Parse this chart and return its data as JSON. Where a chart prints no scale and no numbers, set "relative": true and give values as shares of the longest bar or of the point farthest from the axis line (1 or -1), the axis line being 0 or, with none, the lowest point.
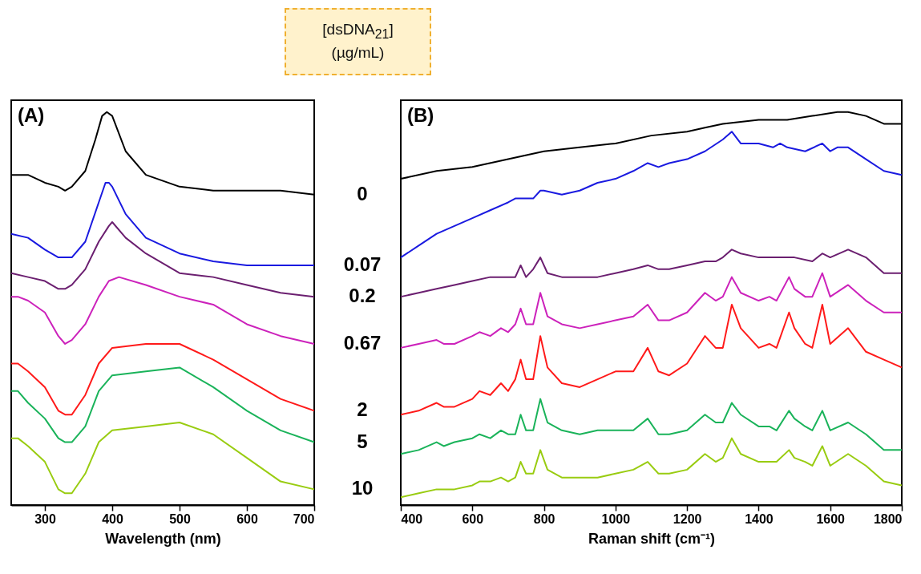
{
  "chart_data": [
    {
      "type": "line",
      "xlabel": "Wavelength (nm)",
      "legend_title": "[dsDNA$_{21}$] (µg/mL)",
      "annotations": [
        "(A)"
      ],
      "relative": true,
      "tick_labels": "x",
      "xlim": [
        250,
        700
      ],
      "xticks": [
        300,
        400,
        500,
        600,
        700
      ],
      "series": [
        {
          "name": "0",
          "color": "#000000",
          "x": [
            250,
            275,
            300,
            320,
            330,
            340,
            360,
            375,
            385,
            392,
            400,
            420,
            450,
            500,
            550,
            600,
            650,
            700
          ],
          "values": [
            0.84,
            0.84,
            0.82,
            0.81,
            0.8,
            0.81,
            0.85,
            0.93,
            0.99,
            1.0,
            0.99,
            0.9,
            0.84,
            0.81,
            0.8,
            0.8,
            0.8,
            0.79
          ]
        },
        {
          "name": "0.07",
          "color": "#1a1ae0",
          "x": [
            250,
            275,
            300,
            320,
            330,
            340,
            360,
            380,
            390,
            395,
            400,
            420,
            450,
            500,
            550,
            600,
            650,
            700
          ],
          "values": [
            0.69,
            0.68,
            0.65,
            0.63,
            0.63,
            0.63,
            0.67,
            0.77,
            0.82,
            0.82,
            0.81,
            0.74,
            0.68,
            0.64,
            0.62,
            0.61,
            0.61,
            0.61
          ]
        },
        {
          "name": "0.2",
          "color": "#6b1f70",
          "x": [
            250,
            275,
            300,
            320,
            330,
            340,
            360,
            380,
            395,
            400,
            420,
            450,
            500,
            550,
            600,
            650,
            700
          ],
          "values": [
            0.59,
            0.58,
            0.57,
            0.55,
            0.55,
            0.56,
            0.6,
            0.67,
            0.71,
            0.72,
            0.68,
            0.64,
            0.59,
            0.58,
            0.56,
            0.54,
            0.53
          ]
        },
        {
          "name": "0.67",
          "color": "#cc22bb",
          "x": [
            250,
            260,
            275,
            300,
            320,
            330,
            340,
            360,
            380,
            395,
            410,
            450,
            500,
            550,
            600,
            650,
            700
          ],
          "values": [
            0.53,
            0.53,
            0.52,
            0.49,
            0.43,
            0.41,
            0.42,
            0.46,
            0.53,
            0.57,
            0.58,
            0.56,
            0.53,
            0.51,
            0.46,
            0.43,
            0.41
          ]
        },
        {
          "name": "2",
          "color": "#ff1a1a",
          "x": [
            250,
            260,
            275,
            300,
            320,
            330,
            340,
            360,
            380,
            400,
            450,
            500,
            550,
            600,
            650,
            700
          ],
          "values": [
            0.36,
            0.36,
            0.34,
            0.3,
            0.24,
            0.23,
            0.23,
            0.28,
            0.36,
            0.4,
            0.41,
            0.41,
            0.37,
            0.32,
            0.27,
            0.24
          ]
        },
        {
          "name": "5",
          "color": "#1ab35a",
          "x": [
            250,
            260,
            275,
            300,
            320,
            330,
            340,
            360,
            380,
            400,
            450,
            500,
            550,
            600,
            650,
            700
          ],
          "values": [
            0.29,
            0.29,
            0.26,
            0.22,
            0.17,
            0.16,
            0.16,
            0.2,
            0.29,
            0.33,
            0.34,
            0.35,
            0.3,
            0.24,
            0.19,
            0.16
          ]
        },
        {
          "name": "10",
          "color": "#99cc11",
          "x": [
            250,
            260,
            275,
            300,
            320,
            330,
            340,
            360,
            380,
            400,
            450,
            500,
            550,
            600,
            650,
            700
          ],
          "values": [
            0.17,
            0.17,
            0.15,
            0.11,
            0.04,
            0.03,
            0.03,
            0.08,
            0.16,
            0.19,
            0.2,
            0.21,
            0.18,
            0.12,
            0.06,
            0.04
          ]
        }
      ]
    },
    {
      "type": "line",
      "xlabel": "Raman shift (cm⁻¹)",
      "annotations": [
        "(B)"
      ],
      "relative": true,
      "tick_labels": "x",
      "xlim": [
        400,
        1800
      ],
      "xticks": [
        400,
        600,
        800,
        1000,
        1200,
        1400,
        1600,
        1800
      ],
      "series": [
        {
          "color": "#000000",
          "x": [
            400,
            500,
            600,
            700,
            800,
            900,
            1000,
            1100,
            1200,
            1250,
            1300,
            1400,
            1450,
            1480,
            1550,
            1620,
            1650,
            1700,
            1750,
            1800
          ],
          "values": [
            0.83,
            0.85,
            0.86,
            0.88,
            0.9,
            0.91,
            0.92,
            0.94,
            0.95,
            0.96,
            0.97,
            0.98,
            0.98,
            0.98,
            0.99,
            1.0,
            1.0,
            0.99,
            0.97,
            0.97
          ]
        },
        {
          "color": "#1a1ae0",
          "x": [
            400,
            450,
            500,
            550,
            600,
            650,
            700,
            720,
            735,
            750,
            770,
            790,
            800,
            850,
            900,
            950,
            1000,
            1050,
            1090,
            1120,
            1150,
            1200,
            1250,
            1300,
            1325,
            1350,
            1400,
            1440,
            1460,
            1480,
            1530,
            1578,
            1600,
            1620,
            1650,
            1700,
            1750,
            1800
          ],
          "values": [
            0.63,
            0.66,
            0.69,
            0.71,
            0.73,
            0.75,
            0.77,
            0.78,
            0.78,
            0.78,
            0.78,
            0.8,
            0.8,
            0.79,
            0.8,
            0.82,
            0.83,
            0.85,
            0.87,
            0.86,
            0.87,
            0.88,
            0.9,
            0.93,
            0.95,
            0.92,
            0.92,
            0.91,
            0.92,
            0.91,
            0.9,
            0.92,
            0.9,
            0.91,
            0.91,
            0.88,
            0.85,
            0.84
          ]
        },
        {
          "color": "#6b1f70",
          "x": [
            400,
            450,
            500,
            550,
            600,
            650,
            700,
            720,
            735,
            750,
            770,
            790,
            810,
            850,
            900,
            950,
            1000,
            1050,
            1090,
            1120,
            1150,
            1200,
            1250,
            1280,
            1300,
            1325,
            1350,
            1400,
            1450,
            1480,
            1500,
            1550,
            1578,
            1600,
            1650,
            1700,
            1750,
            1800
          ],
          "values": [
            0.53,
            0.54,
            0.55,
            0.56,
            0.57,
            0.58,
            0.58,
            0.58,
            0.61,
            0.58,
            0.6,
            0.63,
            0.59,
            0.58,
            0.58,
            0.58,
            0.59,
            0.6,
            0.61,
            0.6,
            0.6,
            0.61,
            0.62,
            0.62,
            0.63,
            0.65,
            0.64,
            0.63,
            0.63,
            0.63,
            0.63,
            0.62,
            0.64,
            0.63,
            0.65,
            0.63,
            0.59,
            0.59
          ]
        },
        {
          "color": "#cc22bb",
          "x": [
            400,
            450,
            500,
            520,
            550,
            600,
            620,
            650,
            680,
            700,
            720,
            735,
            750,
            770,
            790,
            810,
            850,
            900,
            950,
            1000,
            1050,
            1090,
            1120,
            1150,
            1200,
            1250,
            1280,
            1300,
            1325,
            1350,
            1400,
            1430,
            1450,
            1485,
            1500,
            1530,
            1550,
            1578,
            1600,
            1650,
            1700,
            1750,
            1800
          ],
          "values": [
            0.4,
            0.41,
            0.42,
            0.41,
            0.41,
            0.43,
            0.44,
            0.43,
            0.45,
            0.44,
            0.46,
            0.5,
            0.46,
            0.46,
            0.54,
            0.48,
            0.46,
            0.45,
            0.46,
            0.47,
            0.48,
            0.51,
            0.47,
            0.47,
            0.49,
            0.54,
            0.52,
            0.53,
            0.58,
            0.54,
            0.52,
            0.53,
            0.52,
            0.58,
            0.55,
            0.53,
            0.53,
            0.59,
            0.53,
            0.56,
            0.52,
            0.49,
            0.49
          ]
        },
        {
          "color": "#ff1a1a",
          "x": [
            400,
            450,
            500,
            520,
            550,
            600,
            620,
            650,
            680,
            700,
            720,
            735,
            750,
            770,
            790,
            810,
            850,
            900,
            950,
            1000,
            1050,
            1090,
            1120,
            1150,
            1200,
            1250,
            1280,
            1300,
            1325,
            1350,
            1400,
            1430,
            1450,
            1485,
            1500,
            1530,
            1550,
            1578,
            1600,
            1650,
            1700,
            1750,
            1800
          ],
          "values": [
            0.23,
            0.24,
            0.26,
            0.25,
            0.25,
            0.27,
            0.29,
            0.28,
            0.31,
            0.29,
            0.32,
            0.37,
            0.32,
            0.32,
            0.43,
            0.35,
            0.31,
            0.3,
            0.32,
            0.34,
            0.34,
            0.4,
            0.34,
            0.33,
            0.36,
            0.43,
            0.4,
            0.4,
            0.51,
            0.45,
            0.4,
            0.41,
            0.4,
            0.49,
            0.45,
            0.41,
            0.4,
            0.51,
            0.41,
            0.45,
            0.39,
            0.37,
            0.35
          ]
        },
        {
          "color": "#1ab35a",
          "x": [
            400,
            450,
            500,
            520,
            550,
            600,
            620,
            650,
            680,
            700,
            720,
            735,
            750,
            770,
            790,
            810,
            850,
            900,
            950,
            1000,
            1050,
            1090,
            1120,
            1150,
            1200,
            1250,
            1280,
            1300,
            1325,
            1350,
            1400,
            1430,
            1450,
            1485,
            1500,
            1530,
            1550,
            1578,
            1600,
            1650,
            1700,
            1750,
            1800
          ],
          "values": [
            0.13,
            0.14,
            0.16,
            0.15,
            0.16,
            0.17,
            0.18,
            0.17,
            0.19,
            0.18,
            0.18,
            0.23,
            0.19,
            0.19,
            0.27,
            0.21,
            0.19,
            0.18,
            0.19,
            0.19,
            0.19,
            0.22,
            0.18,
            0.18,
            0.19,
            0.23,
            0.21,
            0.21,
            0.26,
            0.23,
            0.2,
            0.2,
            0.19,
            0.24,
            0.22,
            0.2,
            0.19,
            0.24,
            0.19,
            0.21,
            0.18,
            0.14,
            0.14
          ]
        },
        {
          "color": "#99cc11",
          "x": [
            400,
            450,
            500,
            520,
            550,
            600,
            620,
            650,
            680,
            700,
            720,
            735,
            750,
            770,
            790,
            810,
            850,
            900,
            950,
            1000,
            1050,
            1090,
            1120,
            1150,
            1200,
            1250,
            1280,
            1300,
            1325,
            1350,
            1400,
            1430,
            1450,
            1485,
            1500,
            1530,
            1550,
            1578,
            1600,
            1650,
            1700,
            1750,
            1800
          ],
          "values": [
            0.02,
            0.03,
            0.04,
            0.04,
            0.04,
            0.05,
            0.06,
            0.06,
            0.07,
            0.06,
            0.07,
            0.11,
            0.08,
            0.08,
            0.14,
            0.09,
            0.07,
            0.07,
            0.07,
            0.08,
            0.09,
            0.11,
            0.08,
            0.08,
            0.09,
            0.13,
            0.11,
            0.12,
            0.17,
            0.13,
            0.11,
            0.11,
            0.11,
            0.14,
            0.12,
            0.11,
            0.1,
            0.15,
            0.1,
            0.13,
            0.1,
            0.06,
            0.05
          ]
        }
      ]
    }
  ]
}
